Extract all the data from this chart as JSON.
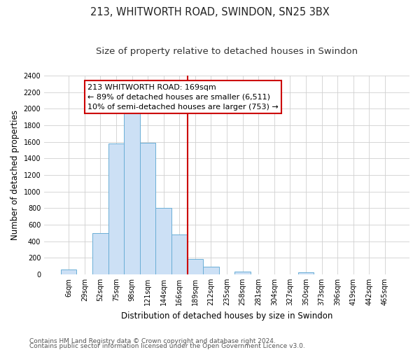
{
  "title": "213, WHITWORTH ROAD, SWINDON, SN25 3BX",
  "subtitle": "Size of property relative to detached houses in Swindon",
  "xlabel": "Distribution of detached houses by size in Swindon",
  "ylabel": "Number of detached properties",
  "bin_labels": [
    "6sqm",
    "29sqm",
    "52sqm",
    "75sqm",
    "98sqm",
    "121sqm",
    "144sqm",
    "166sqm",
    "189sqm",
    "212sqm",
    "235sqm",
    "258sqm",
    "281sqm",
    "304sqm",
    "327sqm",
    "350sqm",
    "373sqm",
    "396sqm",
    "419sqm",
    "442sqm",
    "465sqm"
  ],
  "bar_heights": [
    55,
    0,
    500,
    1580,
    1950,
    1590,
    800,
    480,
    185,
    90,
    0,
    35,
    0,
    0,
    0,
    25,
    0,
    0,
    0,
    0,
    0
  ],
  "bar_color": "#cce0f5",
  "bar_edge_color": "#6aaed6",
  "vline_color": "#cc0000",
  "annotation_line1": "213 WHITWORTH ROAD: 169sqm",
  "annotation_line2": "← 89% of detached houses are smaller (6,511)",
  "annotation_line3": "10% of semi-detached houses are larger (753) →",
  "annotation_box_edge": "#cc0000",
  "ylim": [
    0,
    2400
  ],
  "yticks": [
    0,
    200,
    400,
    600,
    800,
    1000,
    1200,
    1400,
    1600,
    1800,
    2000,
    2200,
    2400
  ],
  "footer_line1": "Contains HM Land Registry data © Crown copyright and database right 2024.",
  "footer_line2": "Contains public sector information licensed under the Open Government Licence v3.0.",
  "title_fontsize": 10.5,
  "subtitle_fontsize": 9.5,
  "axis_label_fontsize": 8.5,
  "tick_fontsize": 7,
  "annotation_fontsize": 8,
  "footer_fontsize": 6.5
}
